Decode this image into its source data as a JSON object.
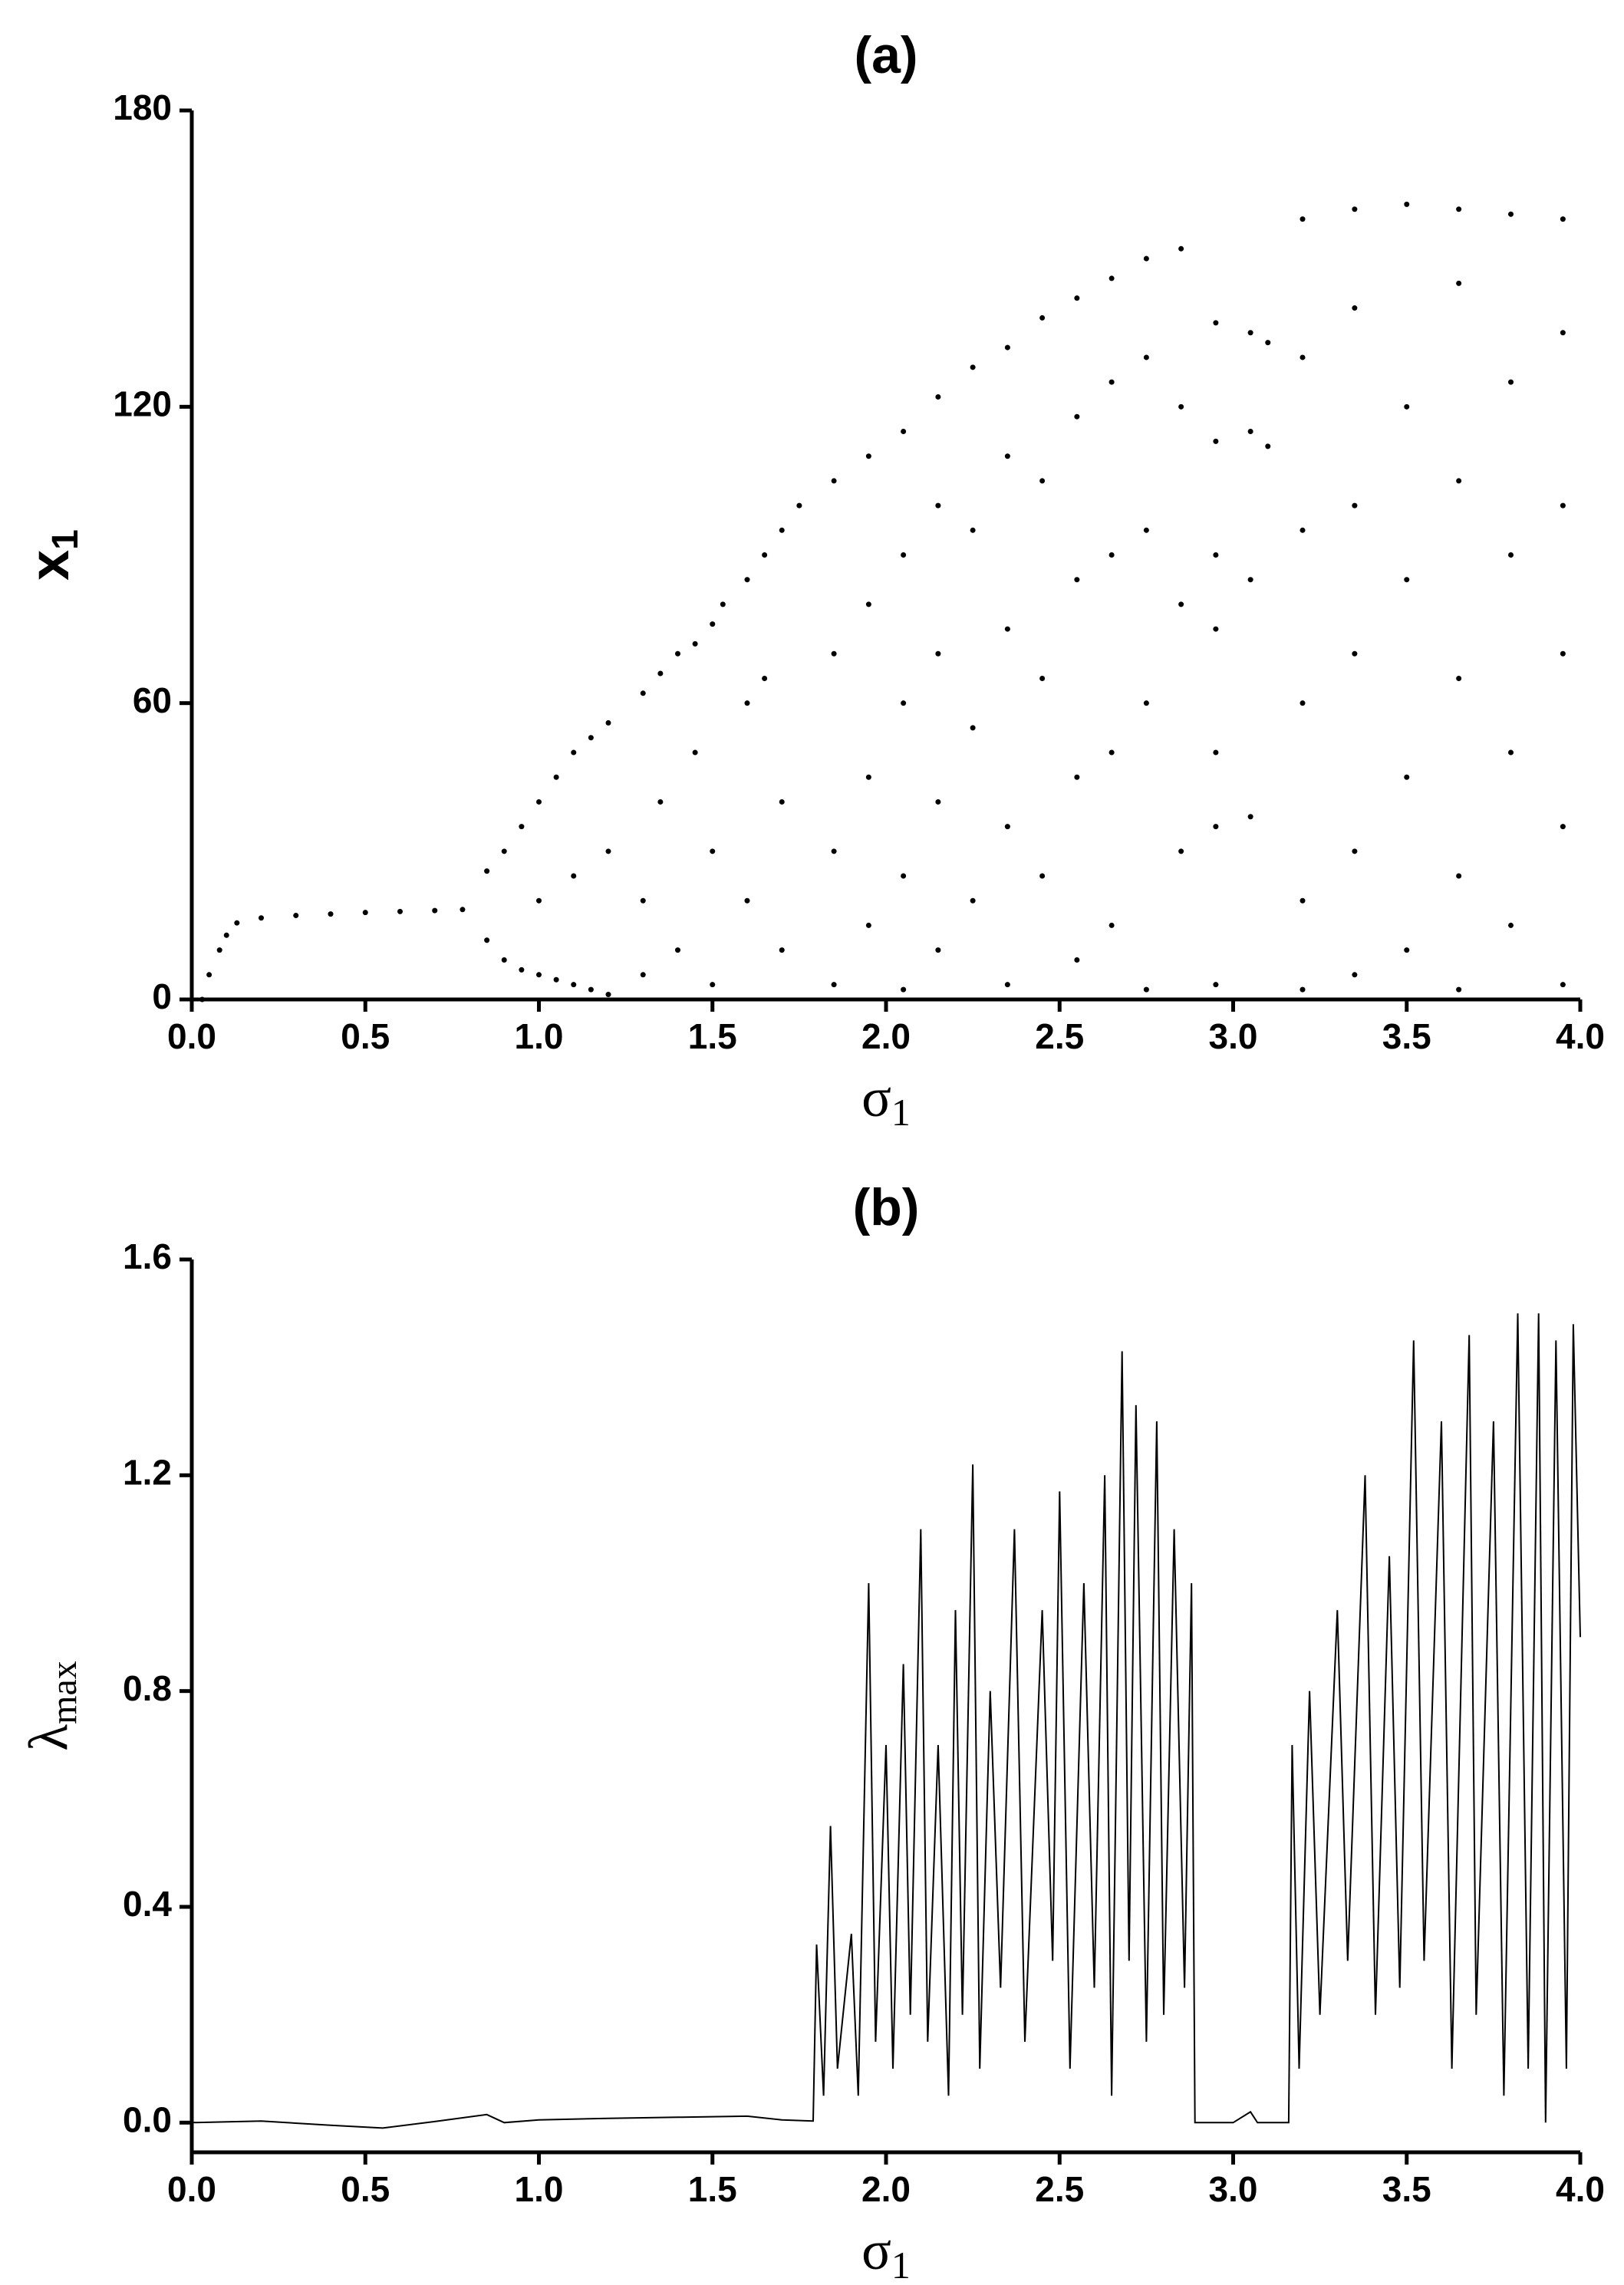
{
  "chart_data": [
    {
      "type": "scatter",
      "title": "(a)",
      "x_label": {
        "text": "σ",
        "sub": "1"
      },
      "y_label": {
        "text": "x",
        "sub": "1"
      },
      "xlim": [
        0,
        4
      ],
      "ylim": [
        0,
        180
      ],
      "xticks": [
        {
          "value": 0,
          "label": "0.0"
        },
        0.5,
        {
          "value": 1,
          "label": "1.0"
        },
        1.5,
        {
          "value": 2,
          "label": "2.0"
        },
        2.5,
        {
          "value": 3,
          "label": "3.0"
        },
        3.5,
        {
          "value": 4,
          "label": "4.0"
        }
      ],
      "yticks": [
        0,
        60,
        120,
        180
      ],
      "series": [
        {
          "color": "#000000",
          "x": [
            0.03,
            0.05,
            0.08,
            0.1,
            0.13,
            0.2,
            0.3,
            0.4,
            0.5,
            0.6,
            0.7,
            0.78,
            0.85,
            0.85,
            0.9,
            0.9,
            0.95,
            0.95,
            1.0,
            1.0,
            1.0,
            1.05,
            1.05,
            1.1,
            1.1,
            1.1,
            1.15,
            1.15,
            1.2,
            1.2,
            1.2,
            1.3,
            1.3,
            1.3,
            1.35,
            1.35,
            1.4,
            1.4,
            1.45,
            1.45,
            1.5,
            1.5,
            1.5,
            1.53,
            1.6,
            1.6,
            1.6,
            1.65,
            1.65,
            1.7,
            1.7,
            1.7,
            1.75,
            1.85,
            1.85,
            1.85,
            1.85,
            1.95,
            1.95,
            1.95,
            1.95,
            2.05,
            2.05,
            2.05,
            2.05,
            2.05,
            2.15,
            2.15,
            2.15,
            2.15,
            2.15,
            2.25,
            2.25,
            2.25,
            2.25,
            2.35,
            2.35,
            2.35,
            2.35,
            2.35,
            2.45,
            2.45,
            2.45,
            2.45,
            2.55,
            2.55,
            2.55,
            2.55,
            2.55,
            2.65,
            2.65,
            2.65,
            2.65,
            2.65,
            2.75,
            2.75,
            2.75,
            2.75,
            2.75,
            2.85,
            2.85,
            2.85,
            2.85,
            2.95,
            2.95,
            2.95,
            2.95,
            2.95,
            2.95,
            2.95,
            3.05,
            3.05,
            3.05,
            3.05,
            3.1,
            3.1,
            3.2,
            3.2,
            3.2,
            3.2,
            3.2,
            3.2,
            3.35,
            3.35,
            3.35,
            3.35,
            3.35,
            3.35,
            3.5,
            3.5,
            3.5,
            3.5,
            3.5,
            3.65,
            3.65,
            3.65,
            3.65,
            3.65,
            3.65,
            3.8,
            3.8,
            3.8,
            3.8,
            3.8,
            3.95,
            3.95,
            3.95,
            3.95,
            3.95,
            3.95
          ],
          "values": [
            0,
            5,
            10,
            13,
            15.5,
            16.5,
            17,
            17.3,
            17.6,
            17.8,
            18,
            18.2,
            12,
            26,
            8,
            30,
            6,
            35,
            5,
            20,
            40,
            4,
            45,
            3,
            25,
            50,
            2,
            53,
            1,
            30,
            56,
            62,
            20,
            5,
            66,
            40,
            70,
            10,
            72,
            50,
            76,
            30,
            3,
            80,
            85,
            60,
            20,
            90,
            65,
            95,
            40,
            10,
            100,
            105,
            70,
            30,
            3,
            110,
            80,
            45,
            15,
            115,
            90,
            60,
            25,
            2,
            122,
            100,
            70,
            40,
            10,
            128,
            95,
            55,
            20,
            132,
            110,
            75,
            35,
            3,
            138,
            105,
            65,
            25,
            142,
            118,
            85,
            45,
            8,
            146,
            125,
            90,
            50,
            15,
            150,
            130,
            95,
            60,
            2,
            152,
            120,
            80,
            30,
            137,
            113,
            90,
            75,
            50,
            35,
            3,
            135,
            115,
            85,
            37,
            133,
            112,
            158,
            130,
            95,
            60,
            20,
            2,
            160,
            140,
            100,
            70,
            30,
            5,
            161,
            120,
            85,
            45,
            10,
            160,
            145,
            105,
            65,
            25,
            2,
            159,
            125,
            90,
            50,
            15,
            158,
            135,
            100,
            70,
            35,
            3
          ]
        }
      ]
    },
    {
      "type": "line",
      "title": "(b)",
      "x_label": {
        "text": "σ",
        "sub": "1"
      },
      "y_label": {
        "text": "λ",
        "sub": "max"
      },
      "xlim": [
        0,
        4
      ],
      "ylim": [
        -0.055,
        1.6
      ],
      "xticks": [
        {
          "value": 0,
          "label": "0.0"
        },
        0.5,
        {
          "value": 1,
          "label": "1.0"
        },
        1.5,
        {
          "value": 2,
          "label": "2.0"
        },
        2.5,
        {
          "value": 3,
          "label": "3.0"
        },
        3.5,
        {
          "value": 4,
          "label": "4.0"
        }
      ],
      "yticks": [
        {
          "value": 0,
          "label": "0.0"
        },
        0.4,
        0.8,
        1.2,
        1.6
      ],
      "series": [
        {
          "color": "#000000",
          "x": [
            0,
            0.2,
            0.4,
            0.55,
            0.7,
            0.85,
            0.9,
            1.0,
            1.2,
            1.4,
            1.6,
            1.7,
            1.79,
            1.8,
            1.82,
            1.84,
            1.86,
            1.9,
            1.92,
            1.95,
            1.97,
            2.0,
            2.02,
            2.05,
            2.07,
            2.1,
            2.12,
            2.15,
            2.18,
            2.2,
            2.22,
            2.25,
            2.27,
            2.3,
            2.33,
            2.37,
            2.4,
            2.45,
            2.48,
            2.5,
            2.53,
            2.57,
            2.6,
            2.63,
            2.65,
            2.68,
            2.7,
            2.72,
            2.75,
            2.78,
            2.8,
            2.83,
            2.86,
            2.88,
            2.89,
            3.0,
            3.05,
            3.07,
            3.16,
            3.17,
            3.19,
            3.22,
            3.25,
            3.3,
            3.33,
            3.38,
            3.41,
            3.45,
            3.48,
            3.52,
            3.55,
            3.6,
            3.63,
            3.68,
            3.7,
            3.75,
            3.78,
            3.82,
            3.85,
            3.88,
            3.9,
            3.93,
            3.96,
            3.98,
            4.0
          ],
          "values": [
            0,
            0.003,
            -0.005,
            -0.01,
            0.002,
            0.015,
            0,
            0.005,
            0.008,
            0.01,
            0.012,
            0.005,
            0.003,
            0.33,
            0.05,
            0.55,
            0.1,
            0.35,
            0.05,
            1.0,
            0.15,
            0.7,
            0.1,
            0.85,
            0.2,
            1.1,
            0.15,
            0.7,
            0.05,
            0.95,
            0.2,
            1.22,
            0.1,
            0.8,
            0.25,
            1.1,
            0.15,
            0.95,
            0.3,
            1.17,
            0.1,
            1.0,
            0.25,
            1.2,
            0.05,
            1.43,
            0.3,
            1.33,
            0.15,
            1.3,
            0.2,
            1.1,
            0.25,
            1.0,
            0,
            0,
            0.02,
            0,
            0,
            0.7,
            0.1,
            0.8,
            0.2,
            0.95,
            0.3,
            1.2,
            0.2,
            1.05,
            0.25,
            1.45,
            0.3,
            1.3,
            0.1,
            1.46,
            0.2,
            1.3,
            0.05,
            1.5,
            0.1,
            1.5,
            0,
            1.45,
            0.1,
            1.48,
            0.9
          ]
        }
      ]
    }
  ]
}
